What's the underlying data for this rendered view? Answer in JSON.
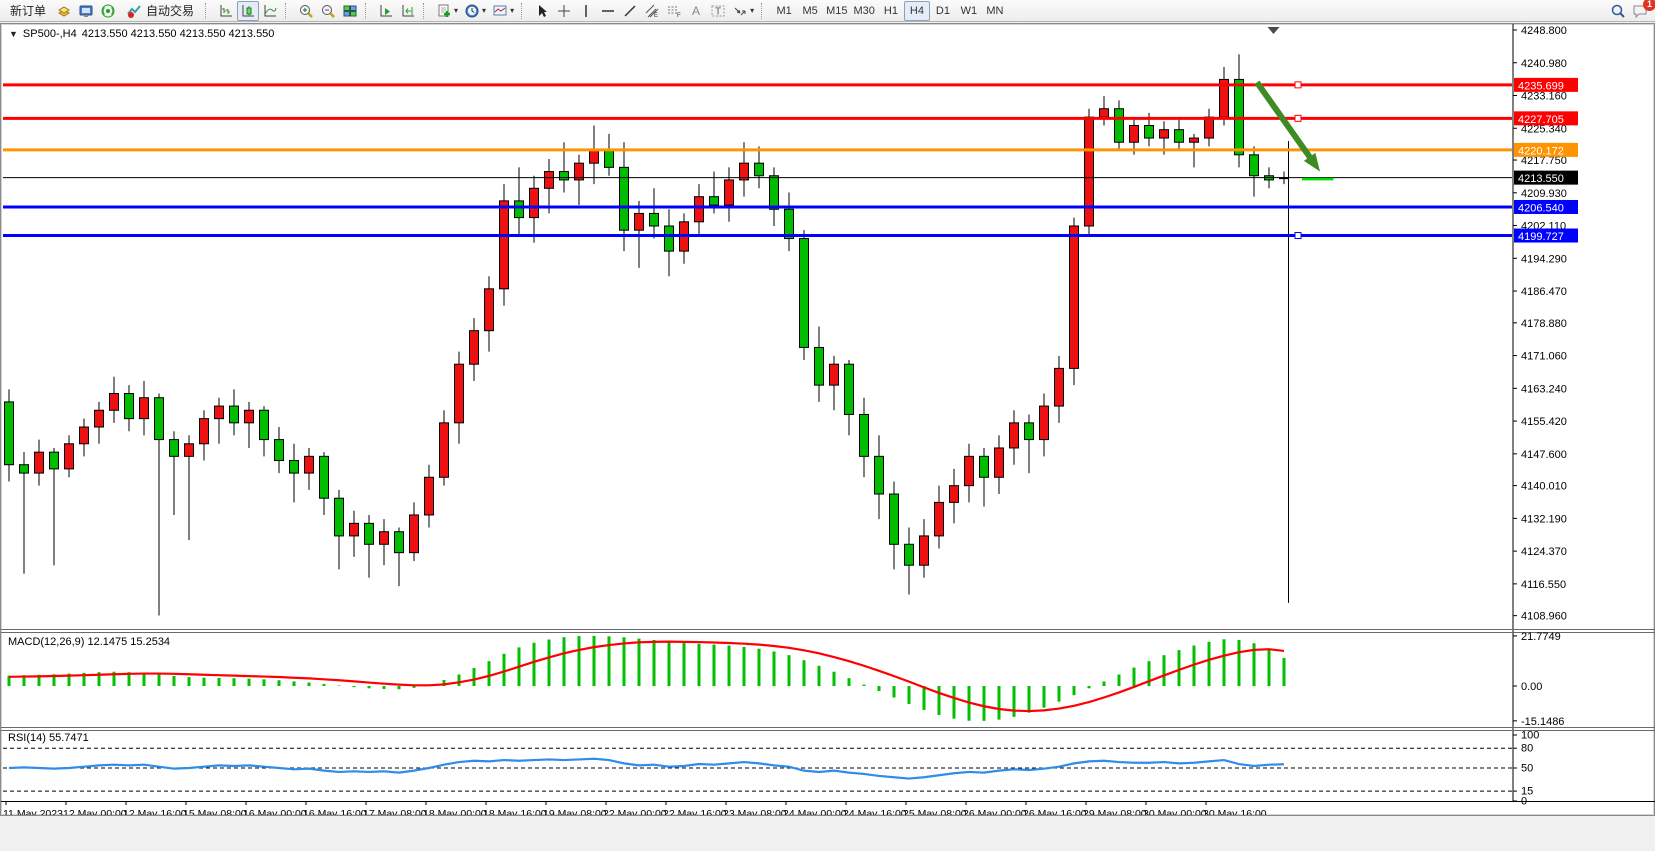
{
  "toolbar": {
    "new_order_label": "新订单",
    "auto_trading_label": "自动交易",
    "timeframes": [
      "M1",
      "M5",
      "M15",
      "M30",
      "H1",
      "H4",
      "D1",
      "W1",
      "MN"
    ],
    "active_timeframe": "H4",
    "notification_count": "1"
  },
  "chart": {
    "symbol": "SP500-,H4",
    "ohlc_text": "4213.550 4213.550 4213.550 4213.550",
    "dropdown_glyph": "▼"
  },
  "indicators": {
    "macd_label": "MACD(12,26,9) 12.1475 15.2534",
    "rsi_label": "RSI(14) 55.7471"
  },
  "colors": {
    "bull_body": "#ee1111",
    "bear_body": "#00bd00",
    "wick": "#000000",
    "macd_hist": "#00c000",
    "macd_signal": "#ff0000",
    "rsi_line": "#2f8ce8",
    "level_red": "#ff0000",
    "level_orange": "#ff9400",
    "level_blue": "#0000ff",
    "level_black": "#000000",
    "arrow_green": "#3d8b22",
    "price_dash_green": "#00e000"
  },
  "chart_data": {
    "type": "candlestick",
    "title": "SP500-,H4",
    "timeframe": "H4",
    "legend_position": "none",
    "grid": false,
    "price_axis_ticks": [
      "4248.800",
      "4240.980",
      "4233.160",
      "4225.340",
      "4217.750",
      "4209.930",
      "4202.110",
      "4194.290",
      "4186.470",
      "4178.880",
      "4171.060",
      "4163.240",
      "4155.420",
      "4147.600",
      "4140.010",
      "4132.190",
      "4124.370",
      "4116.550",
      "4108.960"
    ],
    "time_axis_labels": [
      "11 May 2023",
      "12 May 00:00",
      "12 May 16:00",
      "15 May 08:00",
      "16 May 00:00",
      "16 May 16:00",
      "17 May 08:00",
      "18 May 00:00",
      "18 May 16:00",
      "19 May 08:00",
      "22 May 00:00",
      "22 May 16:00",
      "23 May 08:00",
      "24 May 00:00",
      "24 May 16:00",
      "25 May 08:00",
      "26 May 00:00",
      "26 May 16:00",
      "29 May 08:00",
      "30 May 00:00",
      "30 May 16:00"
    ],
    "hlines": [
      {
        "price": 4235.699,
        "label": "4235.699",
        "color": "#ff0000",
        "width": 3,
        "handle": true
      },
      {
        "price": 4227.705,
        "label": "4227.705",
        "color": "#ff0000",
        "width": 3,
        "handle": true
      },
      {
        "price": 4220.172,
        "label": "4220.172",
        "color": "#ff9400",
        "width": 3,
        "handle": false
      },
      {
        "price": 4213.55,
        "label": "4213.550",
        "color": "#000000",
        "width": 1,
        "handle": false
      },
      {
        "price": 4206.54,
        "label": "4206.540",
        "color": "#0000ff",
        "width": 3,
        "handle": false
      },
      {
        "price": 4199.727,
        "label": "4199.727",
        "color": "#0000ff",
        "width": 3,
        "handle": true
      }
    ],
    "candles_ohlc": [
      [
        4160,
        4163,
        4141,
        4145
      ],
      [
        4145,
        4148,
        4119,
        4143
      ],
      [
        4143,
        4151,
        4140,
        4148
      ],
      [
        4148,
        4149,
        4121,
        4144
      ],
      [
        4144,
        4152,
        4142,
        4150
      ],
      [
        4150,
        4156,
        4147,
        4154
      ],
      [
        4154,
        4160,
        4150,
        4158
      ],
      [
        4158,
        4166,
        4155,
        4162
      ],
      [
        4162,
        4164,
        4153,
        4156
      ],
      [
        4156,
        4165,
        4152,
        4161
      ],
      [
        4161,
        4162,
        4109,
        4151
      ],
      [
        4151,
        4153,
        4133,
        4147
      ],
      [
        4147,
        4152,
        4127,
        4150
      ],
      [
        4150,
        4158,
        4146,
        4156
      ],
      [
        4156,
        4161,
        4150,
        4159
      ],
      [
        4159,
        4163,
        4152,
        4155
      ],
      [
        4155,
        4160,
        4149,
        4158
      ],
      [
        4158,
        4159,
        4147,
        4151
      ],
      [
        4151,
        4154,
        4143,
        4146
      ],
      [
        4146,
        4150,
        4136,
        4143
      ],
      [
        4143,
        4149,
        4139,
        4147
      ],
      [
        4147,
        4148,
        4133,
        4137
      ],
      [
        4137,
        4139,
        4120,
        4128
      ],
      [
        4128,
        4134,
        4123,
        4131
      ],
      [
        4131,
        4133,
        4118,
        4126
      ],
      [
        4126,
        4132,
        4121,
        4129
      ],
      [
        4129,
        4130,
        4116,
        4124
      ],
      [
        4124,
        4136,
        4122,
        4133
      ],
      [
        4133,
        4145,
        4130,
        4142
      ],
      [
        4142,
        4158,
        4140,
        4155
      ],
      [
        4155,
        4172,
        4150,
        4169
      ],
      [
        4169,
        4180,
        4165,
        4177
      ],
      [
        4177,
        4190,
        4172,
        4187
      ],
      [
        4187,
        4212,
        4183,
        4208
      ],
      [
        4208,
        4216,
        4200,
        4204
      ],
      [
        4204,
        4214,
        4198,
        4211
      ],
      [
        4211,
        4218,
        4205,
        4215
      ],
      [
        4215,
        4222,
        4210,
        4213
      ],
      [
        4213,
        4219,
        4207,
        4217
      ],
      [
        4217,
        4226,
        4212,
        4220
      ],
      [
        4220,
        4224,
        4214,
        4216
      ],
      [
        4216,
        4222,
        4196,
        4201
      ],
      [
        4201,
        4208,
        4192,
        4205
      ],
      [
        4205,
        4211,
        4199,
        4202
      ],
      [
        4202,
        4206,
        4190,
        4196
      ],
      [
        4196,
        4205,
        4193,
        4203
      ],
      [
        4203,
        4212,
        4200,
        4209
      ],
      [
        4209,
        4215,
        4205,
        4207
      ],
      [
        4207,
        4216,
        4203,
        4213
      ],
      [
        4213,
        4222,
        4209,
        4217
      ],
      [
        4217,
        4221,
        4211,
        4214
      ],
      [
        4214,
        4216,
        4202,
        4206
      ],
      [
        4206,
        4210,
        4196,
        4199
      ],
      [
        4199,
        4201,
        4170,
        4173
      ],
      [
        4173,
        4178,
        4160,
        4164
      ],
      [
        4164,
        4171,
        4158,
        4169
      ],
      [
        4169,
        4170,
        4152,
        4157
      ],
      [
        4157,
        4161,
        4142,
        4147
      ],
      [
        4147,
        4152,
        4132,
        4138
      ],
      [
        4138,
        4141,
        4120,
        4126
      ],
      [
        4126,
        4130,
        4114,
        4121
      ],
      [
        4121,
        4132,
        4118,
        4128
      ],
      [
        4128,
        4140,
        4125,
        4136
      ],
      [
        4136,
        4144,
        4131,
        4140
      ],
      [
        4140,
        4150,
        4136,
        4147
      ],
      [
        4147,
        4149,
        4135,
        4142
      ],
      [
        4142,
        4152,
        4138,
        4149
      ],
      [
        4149,
        4158,
        4145,
        4155
      ],
      [
        4155,
        4157,
        4143,
        4151
      ],
      [
        4151,
        4162,
        4147,
        4159
      ],
      [
        4159,
        4171,
        4155,
        4168
      ],
      [
        4168,
        4204,
        4164,
        4202
      ],
      [
        4202,
        4230,
        4200,
        4228
      ],
      [
        4228,
        4233,
        4226,
        4230
      ],
      [
        4230,
        4232,
        4220,
        4222
      ],
      [
        4222,
        4228,
        4219,
        4226
      ],
      [
        4226,
        4229,
        4221,
        4223
      ],
      [
        4223,
        4227,
        4219,
        4225
      ],
      [
        4225,
        4228,
        4220,
        4222
      ],
      [
        4222,
        4224,
        4216,
        4223
      ],
      [
        4223,
        4230,
        4221,
        4228
      ],
      [
        4228,
        4240,
        4226,
        4237
      ],
      [
        4237,
        4243,
        4216,
        4219
      ],
      [
        4219,
        4221,
        4209,
        4214
      ],
      [
        4214,
        4216,
        4211,
        4213
      ],
      [
        4213.5,
        4215,
        4212,
        4213.55
      ]
    ],
    "macd": {
      "label": "MACD(12,26,9) 12.1475 15.2534",
      "value": 12.1475,
      "signal_value": 15.2534,
      "axis_ticks": [
        "21.7749",
        "0.00",
        "-15.1486"
      ],
      "hist": [
        4.5,
        4.7,
        4.9,
        5.1,
        5.4,
        5.7,
        6.0,
        6.2,
        6.0,
        5.6,
        5.0,
        4.4,
        3.9,
        3.6,
        3.5,
        3.4,
        3.2,
        2.9,
        2.5,
        2.0,
        1.5,
        0.9,
        0.2,
        -0.5,
        -1.0,
        -1.3,
        -1.4,
        -0.8,
        0.6,
        2.6,
        5.0,
        7.8,
        10.8,
        14.0,
        16.8,
        18.8,
        20.2,
        21.2,
        21.7,
        21.77,
        21.6,
        21.2,
        20.6,
        20.0,
        19.4,
        18.9,
        18.4,
        18.0,
        17.6,
        17.0,
        16.2,
        15.0,
        13.4,
        11.2,
        8.8,
        6.2,
        3.4,
        0.6,
        -2.2,
        -5.0,
        -7.8,
        -10.4,
        -12.6,
        -14.2,
        -15.1,
        -15.15,
        -14.6,
        -13.4,
        -11.6,
        -9.4,
        -6.8,
        -4.0,
        -1.0,
        2.0,
        5.0,
        8.0,
        10.8,
        13.4,
        15.6,
        17.6,
        19.2,
        20.3,
        20.0,
        18.6,
        16.2,
        12.15
      ],
      "signal": [
        4.0,
        4.1,
        4.2,
        4.35,
        4.5,
        4.7,
        4.9,
        5.1,
        5.3,
        5.4,
        5.4,
        5.3,
        5.1,
        4.9,
        4.7,
        4.5,
        4.3,
        4.1,
        3.9,
        3.6,
        3.3,
        2.9,
        2.5,
        2.0,
        1.5,
        1.0,
        0.6,
        0.3,
        0.3,
        0.7,
        1.6,
        2.8,
        4.4,
        6.3,
        8.4,
        10.5,
        12.4,
        14.2,
        15.7,
        16.9,
        17.8,
        18.5,
        19.0,
        19.2,
        19.3,
        19.2,
        19.1,
        18.9,
        18.7,
        18.4,
        18.0,
        17.4,
        16.6,
        15.5,
        14.2,
        12.6,
        10.8,
        8.8,
        6.6,
        4.3,
        1.9,
        -0.6,
        -3.0,
        -5.2,
        -7.2,
        -8.8,
        -10.0,
        -10.7,
        -10.9,
        -10.6,
        -9.8,
        -8.6,
        -7.0,
        -5.0,
        -2.8,
        -0.4,
        2.1,
        4.6,
        7.0,
        9.3,
        11.4,
        13.2,
        14.7,
        15.7,
        16.0,
        15.25
      ]
    },
    "rsi": {
      "label": "RSI(14) 55.7471",
      "value": 55.7471,
      "levels": [
        80,
        50,
        15
      ],
      "axis_ticks": [
        "100",
        "80",
        "50",
        "15",
        "0"
      ],
      "values": [
        50,
        51,
        50,
        49,
        50,
        52,
        54,
        55,
        54,
        55,
        52,
        49,
        50,
        52,
        54,
        53,
        54,
        52,
        50,
        48,
        49,
        46,
        44,
        45,
        44,
        45,
        43,
        46,
        50,
        55,
        59,
        61,
        60,
        62,
        61,
        62,
        63,
        62,
        63,
        64,
        62,
        57,
        54,
        55,
        52,
        53,
        56,
        55,
        57,
        59,
        57,
        54,
        52,
        46,
        44,
        46,
        43,
        41,
        38,
        36,
        34,
        36,
        39,
        42,
        44,
        43,
        46,
        48,
        47,
        49,
        52,
        57,
        60,
        61,
        59,
        58,
        58,
        59,
        57,
        58,
        60,
        62,
        56,
        53,
        55,
        55.7
      ]
    },
    "annotations": {
      "arrow": {
        "bar_from": 83.2,
        "price_from": 4236.3,
        "bar_to": 87.4,
        "price_to": 4215.0
      },
      "vline": {
        "bar": 85.3,
        "price_from": 4222.3,
        "price_to": 4112.0
      },
      "price_dash": {
        "bar_from": 86.2,
        "bar_to": 88.3,
        "price": 4213.2
      },
      "shift_marker_x_bar": 84.3
    }
  }
}
